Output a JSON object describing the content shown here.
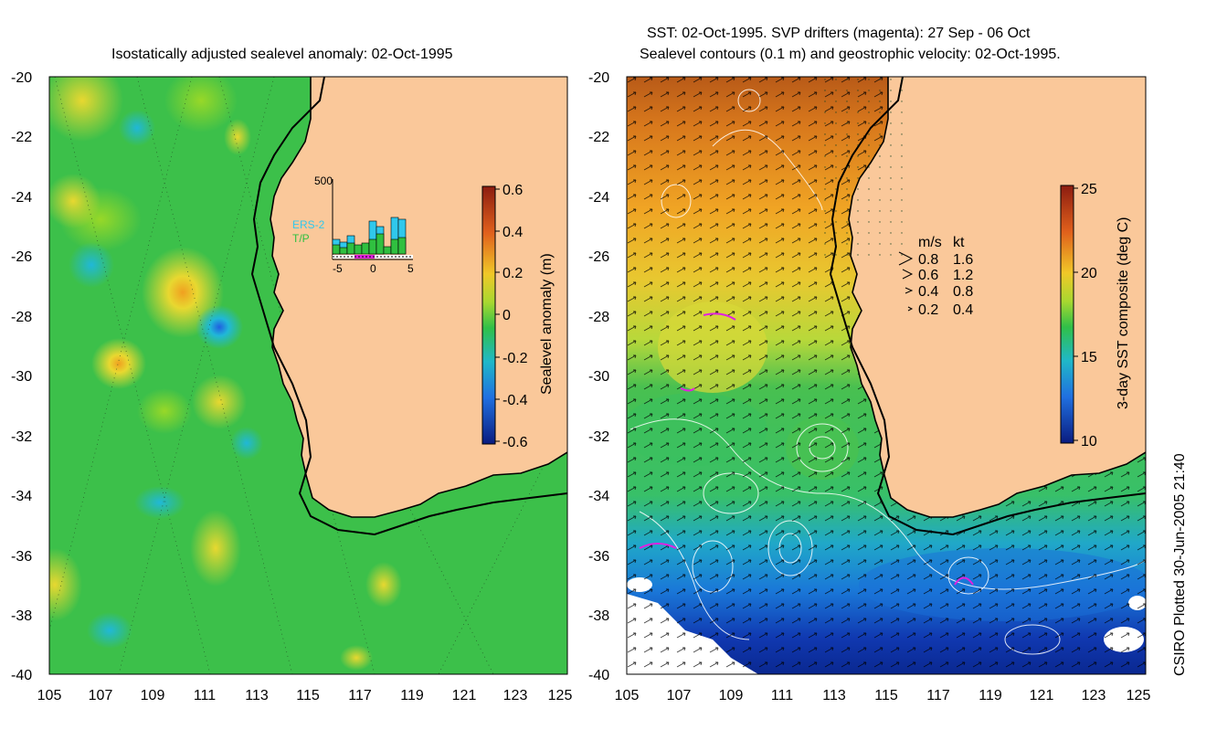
{
  "left_panel": {
    "title": "Isostatically adjusted sealevel anomaly: 02-Oct-1995",
    "y_ticks": [
      "-20",
      "-22",
      "-24",
      "-26",
      "-28",
      "-30",
      "-32",
      "-34",
      "-36",
      "-38",
      "-40"
    ],
    "x_ticks": [
      "105",
      "107",
      "109",
      "111",
      "113",
      "115",
      "117",
      "119",
      "121",
      "123",
      "125"
    ],
    "colorbar": {
      "label": "Sealevel anomaly (m)",
      "ticks": [
        "0.6",
        "0.4",
        "0.2",
        "0",
        "-0.2",
        "-0.4",
        "-0.6"
      ]
    },
    "inset": {
      "y_max_label": "500",
      "x_ticks": [
        "-5",
        "0",
        "5"
      ],
      "legend": [
        "ERS-2",
        "T/P"
      ]
    }
  },
  "right_panel": {
    "title_line1": "SST: 02-Oct-1995. SVP drifters (magenta): 27 Sep - 06 Oct",
    "title_line2": "Sealevel contours (0.1 m) and geostrophic velocity: 02-Oct-1995.",
    "y_ticks": [
      "-20",
      "-22",
      "-24",
      "-26",
      "-28",
      "-30",
      "-32",
      "-34",
      "-36",
      "-38",
      "-40"
    ],
    "x_ticks": [
      "105",
      "107",
      "109",
      "111",
      "113",
      "115",
      "117",
      "119",
      "121",
      "123",
      "125"
    ],
    "colorbar": {
      "label": "3-day SST composite (deg C)",
      "ticks": [
        "25",
        "20",
        "15",
        "10"
      ]
    },
    "velocity_legend": {
      "header_ms": "m/s",
      "header_kt": "kt",
      "rows": [
        {
          "ms": "0.8",
          "kt": "1.6"
        },
        {
          "ms": "0.6",
          "kt": "1.2"
        },
        {
          "ms": "0.4",
          "kt": "0.8"
        },
        {
          "ms": "0.2",
          "kt": "0.4"
        }
      ]
    }
  },
  "credit": "CSIRO Plotted 30-Jun-2005 21:40",
  "colors": {
    "land": "#fac89a",
    "anomaly_base": "#3cc04a",
    "sst_warm": "#e0841c",
    "sst_cold": "#0a38b0"
  }
}
